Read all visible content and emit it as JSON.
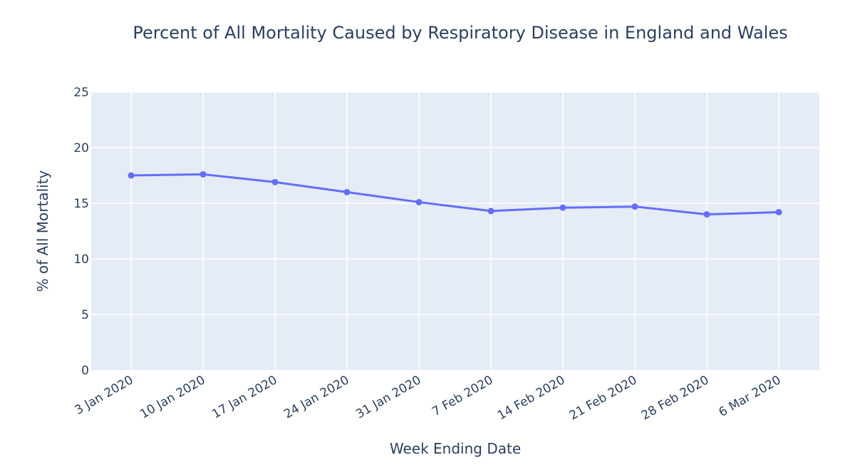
{
  "chart_data": {
    "type": "line",
    "title": "Percent of All Mortality Caused by Respiratory Disease in England and Wales",
    "xlabel": "Week Ending Date",
    "ylabel": "% of All Mortality",
    "categories": [
      "3 Jan 2020",
      "10 Jan 2020",
      "17 Jan 2020",
      "24 Jan 2020",
      "31 Jan 2020",
      "7 Feb 2020",
      "14 Feb 2020",
      "21 Feb 2020",
      "28 Feb 2020",
      "6 Mar 2020"
    ],
    "series": [
      {
        "name": "% of All Mortality",
        "values": [
          17.5,
          17.6,
          16.9,
          16.0,
          15.1,
          14.3,
          14.6,
          14.7,
          14.0,
          14.2
        ],
        "color": "#636efa"
      }
    ],
    "ylim": [
      0,
      25
    ],
    "yticks": [
      "0",
      "5",
      "10",
      "15",
      "20",
      "25"
    ],
    "grid": true,
    "legend": "none",
    "colors": {
      "plot_bg": "#e5ecf6",
      "grid": "#ffffff",
      "text": "#2a3f5f",
      "line": "#636efa"
    }
  }
}
